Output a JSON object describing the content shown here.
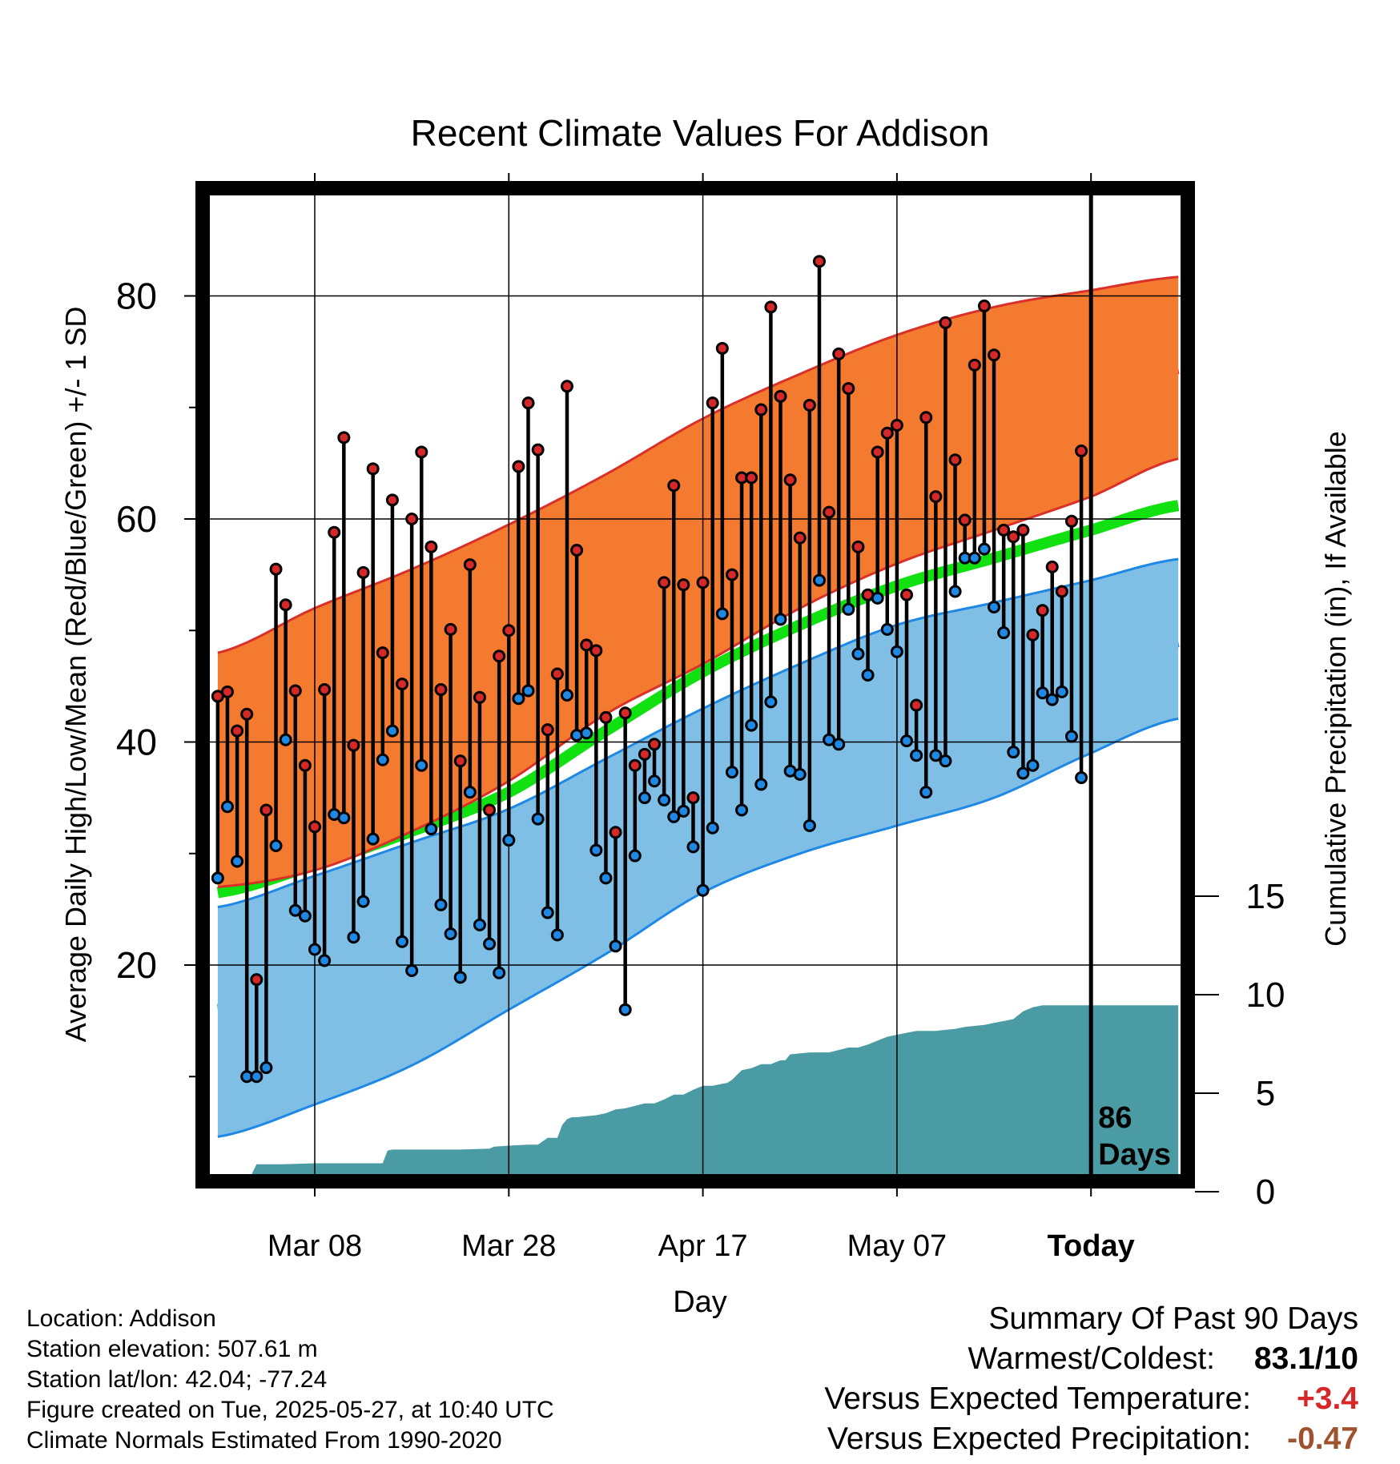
{
  "chart_data": {
    "type": "line",
    "title": "Recent Climate Values For Addison",
    "xlabel": "Day",
    "ylabel": "Average Daily High/Low/Mean (Red/Blue/Green) +/- 1 SD",
    "y2label": "Cumulative Precipitation (in), If Available",
    "ylim": [
      0,
      87
    ],
    "y2lim": [
      0,
      45
    ],
    "xlim": [
      -10,
      89
    ],
    "grid": true,
    "legend": "none",
    "x_ticks": [
      {
        "day": 0,
        "label": "Mar 08"
      },
      {
        "day": 20,
        "label": "Mar 28"
      },
      {
        "day": 40,
        "label": "Apr 17"
      },
      {
        "day": 60,
        "label": "May 07"
      },
      {
        "day": 80,
        "label": "Today"
      }
    ],
    "y_ticks": [
      20,
      40,
      60,
      80
    ],
    "y2_ticks": [
      0,
      5,
      10,
      15
    ],
    "today_marker": {
      "day": 80,
      "label_line1": "86",
      "label_line2": "Days"
    },
    "colors": {
      "high_band": "#f47a30",
      "high_mean": "#d62828",
      "low_band": "#7fbfe6",
      "low_mean": "#1e88e5",
      "mean_line": "#11e011",
      "precip": "#4a9ba4",
      "high_marker": "#d62828",
      "low_marker": "#1e88e5"
    },
    "normals": {
      "day": [
        -10,
        0,
        10,
        20,
        30,
        40,
        50,
        60,
        70,
        80,
        89
      ],
      "high_mean": [
        36,
        39.5,
        43.5,
        48,
        53,
        57.5,
        61.5,
        65.5,
        68.5,
        71,
        73.5
      ],
      "high_upper": [
        48,
        52,
        55.5,
        59.5,
        64,
        69,
        73,
        76.5,
        79,
        80.5,
        81.7
      ],
      "high_lower": [
        27,
        28.5,
        32,
        36.5,
        42.5,
        47,
        52,
        56,
        59,
        62,
        65.4
      ],
      "mean": [
        26.5,
        29,
        32,
        35.5,
        41,
        46.3,
        50.5,
        54,
        56.5,
        59,
        61.2
      ],
      "low_mean": [
        16,
        18,
        21,
        24.8,
        29.5,
        34,
        37.5,
        40.5,
        43,
        46,
        49
      ],
      "low_upper": [
        25.2,
        28,
        31,
        34,
        38.5,
        43,
        47,
        50.5,
        52.5,
        54.5,
        56.4
      ],
      "low_lower": [
        4.6,
        7.5,
        11,
        16,
        21,
        26.5,
        30,
        32.5,
        35,
        39,
        42.1
      ]
    },
    "daily_high": [
      44.1,
      44.5,
      41,
      42.5,
      18.7,
      33.9,
      55.5,
      52.3,
      44.6,
      37.9,
      32.4,
      44.7,
      58.8,
      67.3,
      39.7,
      55.2,
      64.5,
      48,
      61.7,
      45.2,
      60,
      66,
      57.5,
      44.7,
      50.1,
      38.3,
      55.9,
      44,
      33.9,
      47.7,
      50,
      64.7,
      70.4,
      66.2,
      41.1,
      46.1,
      71.9,
      57.2,
      48.7,
      48.2,
      42.2,
      31.9,
      42.6,
      37.9,
      38.9,
      39.8,
      54.3,
      63,
      54.1,
      35,
      54.3,
      70.4,
      75.3,
      55,
      63.7,
      63.7,
      69.8,
      79,
      71,
      63.5,
      58.3,
      70.2,
      83.1,
      60.6,
      74.8,
      71.7,
      57.5,
      53.2,
      66,
      67.7,
      68.4,
      53.2,
      43.3,
      69.1,
      62,
      77.6,
      65.3,
      59.9,
      73.8,
      79.1,
      74.7,
      59,
      58.4,
      59,
      49.6,
      51.8,
      55.7,
      53.5,
      59.8,
      66.1
    ],
    "daily_low": [
      27.8,
      34.2,
      29.3,
      10,
      10,
      10.8,
      30.7,
      40.2,
      24.9,
      24.4,
      21.4,
      20.4,
      33.5,
      33.2,
      22.5,
      25.7,
      31.3,
      38.4,
      41,
      22.1,
      19.5,
      37.9,
      32.2,
      25.4,
      22.8,
      18.9,
      35.5,
      23.6,
      21.9,
      19.3,
      31.2,
      43.9,
      44.6,
      33.1,
      24.7,
      22.7,
      44.2,
      40.6,
      40.8,
      30.3,
      27.8,
      21.7,
      16,
      29.8,
      35,
      36.5,
      34.8,
      33.3,
      33.8,
      30.6,
      26.7,
      32.3,
      51.5,
      37.3,
      33.9,
      41.5,
      36.2,
      43.6,
      51,
      37.4,
      37.1,
      32.5,
      54.5,
      40.2,
      39.8,
      51.9,
      47.9,
      46,
      52.9,
      50.1,
      48.1,
      40.1,
      38.8,
      35.5,
      38.8,
      38.3,
      53.5,
      56.5,
      56.5,
      57.3,
      52.1,
      49.8,
      39.1,
      37.2,
      37.9,
      44.4,
      43.8,
      44.5,
      40.5,
      36.8
    ],
    "precip_cumulative": {
      "day": [
        -10,
        -6.5,
        -6,
        -3.5,
        -3.4,
        0,
        7,
        7.5,
        8,
        15,
        18,
        18.5,
        20,
        22,
        23,
        24,
        25,
        25.5,
        26,
        26.5,
        27,
        29,
        30,
        31,
        32,
        34,
        35,
        36,
        37,
        38,
        39,
        40,
        41,
        42,
        42.5,
        43,
        44,
        45,
        46,
        47,
        48,
        48.5,
        49,
        51,
        53,
        55,
        56,
        57,
        59,
        60,
        61,
        62,
        63,
        64,
        65,
        66,
        67,
        69,
        70,
        71,
        72,
        73,
        74,
        75,
        76,
        77,
        79,
        81,
        83,
        85,
        89
      ],
      "value": [
        0,
        0,
        0.5,
        0.5,
        0.5,
        0.55,
        0.55,
        1.2,
        1.25,
        1.25,
        1.3,
        1.4,
        1.45,
        1.5,
        1.5,
        1.85,
        1.85,
        2.5,
        2.8,
        2.9,
        2.9,
        3.0,
        3.1,
        3.3,
        3.35,
        3.6,
        3.6,
        3.8,
        4.05,
        4.05,
        4.3,
        4.5,
        4.5,
        4.6,
        4.65,
        4.8,
        5.3,
        5.4,
        5.6,
        5.6,
        5.8,
        5.8,
        6.1,
        6.2,
        6.2,
        6.45,
        6.45,
        6.6,
        7.0,
        7.1,
        7.2,
        7.3,
        7.3,
        7.3,
        7.35,
        7.4,
        7.5,
        7.6,
        7.7,
        7.8,
        7.9,
        8.3,
        8.5,
        8.6,
        8.6,
        8.6,
        8.6,
        8.6,
        8.6,
        8.6,
        8.6
      ]
    }
  },
  "info": {
    "location": "Location: Addison",
    "elevation": "Station elevation: 507.61 m",
    "latlon": "Station lat/lon: 42.04; -77.24",
    "created": "Figure created on Tue, 2025-05-27, at 10:40 UTC",
    "normals": "Climate Normals Estimated From 1990-2020"
  },
  "summary": {
    "title": "Summary Of Past 90 Days",
    "warmest_label": "Warmest/Coldest:",
    "warmest_value": "83.1/10",
    "temp_label": "Versus Expected Temperature:",
    "temp_value": "+3.4",
    "temp_color": "#d62828",
    "precip_label": "Versus Expected Precipitation:",
    "precip_value": "-0.47",
    "precip_color": "#a0522d"
  }
}
